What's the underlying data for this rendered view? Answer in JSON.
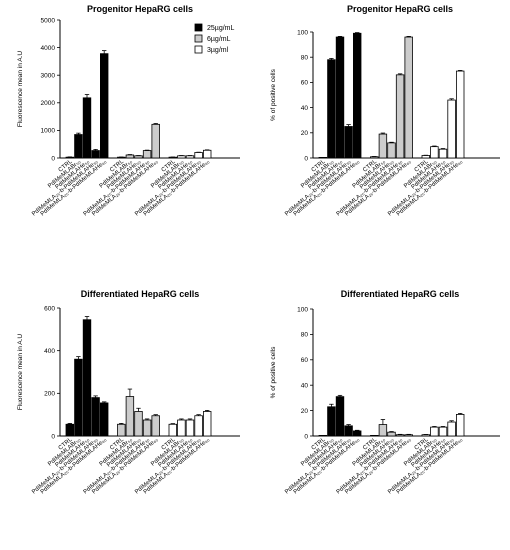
{
  "chart_data": [
    {
      "type": "bar",
      "title": "Progenitor HepaRG cells",
      "ylabel": "Fluorescence mean in A.U",
      "ylim": [
        0,
        5000
      ],
      "yticks": [
        0,
        1000,
        2000,
        3000,
        4000,
        5000
      ],
      "legend": {
        "placement": "top-right",
        "entries": [
          "25µg/mL",
          "6µg/mL",
          "3µg/ml"
        ]
      },
      "categories": [
        "CTRL",
        "PdIMeMLABr₅₀",
        "PdIMeMLAHe₅₀",
        "PdIMeMLA₂₅-b-PdIMeMLAHe₃₀",
        "PdIMeMLA₂₅-b-PdIMeMLAHe₆₀"
      ],
      "series": [
        {
          "name": "25µg/mL",
          "color": "#000000",
          "values": [
            30,
            850,
            2180,
            270,
            3780
          ],
          "errors": [
            10,
            50,
            120,
            40,
            110
          ]
        },
        {
          "name": "6µg/mL",
          "color": "#cccccc",
          "values": [
            30,
            110,
            80,
            270,
            1220
          ],
          "errors": [
            5,
            15,
            10,
            15,
            30
          ]
        },
        {
          "name": "3µg/ml",
          "color": "#ffffff",
          "values": [
            30,
            80,
            80,
            200,
            280
          ],
          "errors": [
            5,
            10,
            10,
            10,
            15
          ]
        }
      ]
    },
    {
      "type": "bar",
      "title": "Progenitor HepaRG cells",
      "ylabel": "% of positive cells",
      "ylim": [
        0,
        100
      ],
      "yticks": [
        0,
        20,
        40,
        60,
        80,
        100
      ],
      "categories": [
        "CTRL",
        "PdIMeMLABr₅₀",
        "PdIMeMLAHe₅₀",
        "PdIMeMLA₂₅-b-PdIMeMLAHe₃₀",
        "PdIMeMLA₂₅-b-PdIMeMLAHe₆₀"
      ],
      "series": [
        {
          "name": "25µg/mL",
          "color": "#000000",
          "values": [
            0,
            78,
            96,
            25,
            99
          ],
          "errors": [
            0,
            1,
            0.5,
            1.5,
            0.5
          ]
        },
        {
          "name": "6µg/mL",
          "color": "#cccccc",
          "values": [
            1,
            19,
            12,
            66,
            96
          ],
          "errors": [
            0.2,
            0.8,
            0.5,
            0.8,
            0.5
          ]
        },
        {
          "name": "3µg/ml",
          "color": "#ffffff",
          "values": [
            2,
            9,
            7,
            46,
            69
          ],
          "errors": [
            0.2,
            0.5,
            0.5,
            1,
            0.5
          ]
        }
      ]
    },
    {
      "type": "bar",
      "title": "Differentiated HepaRG cells",
      "ylabel": "Fluorescence mean in A.U",
      "ylim": [
        0,
        600
      ],
      "yticks": [
        0,
        200,
        400,
        600
      ],
      "categories": [
        "CTRL",
        "PdIMeMLABr₅₀",
        "PdIMeMLAHe₅₀",
        "PdIMeMLA₂₅-b-PdIMeMLAHe₃₀",
        "PdIMeMLA₂₅-b-PdIMeMLAHe₆₀"
      ],
      "series": [
        {
          "name": "25µg/mL",
          "color": "#000000",
          "values": [
            55,
            360,
            545,
            180,
            155
          ],
          "errors": [
            4,
            12,
            15,
            8,
            5
          ]
        },
        {
          "name": "6µg/mL",
          "color": "#cccccc",
          "values": [
            55,
            185,
            115,
            75,
            95
          ],
          "errors": [
            4,
            35,
            15,
            5,
            5
          ]
        },
        {
          "name": "3µg/ml",
          "color": "#ffffff",
          "values": [
            55,
            75,
            75,
            95,
            115
          ],
          "errors": [
            3,
            5,
            5,
            5,
            5
          ]
        }
      ]
    },
    {
      "type": "bar",
      "title": "Differentiated HepaRG cells",
      "ylabel": "% of positive cells",
      "ylim": [
        0,
        100
      ],
      "yticks": [
        0,
        20,
        40,
        60,
        80,
        100
      ],
      "categories": [
        "CTRL",
        "PdIMeMLABr₅₀",
        "PdIMeMLAHe₅₀",
        "PdIMeMLA₂₅-b-PdIMeMLAHe₃₀",
        "PdIMeMLA₂₅-b-PdIMeMLAHe₆₀"
      ],
      "series": [
        {
          "name": "25µg/mL",
          "color": "#000000",
          "values": [
            0,
            23,
            31,
            8,
            4
          ],
          "errors": [
            0,
            2,
            1,
            1,
            0.5
          ]
        },
        {
          "name": "6µg/mL",
          "color": "#cccccc",
          "values": [
            0,
            9,
            3,
            1,
            1
          ],
          "errors": [
            0,
            4,
            0.5,
            0.3,
            0.3
          ]
        },
        {
          "name": "3µg/ml",
          "color": "#ffffff",
          "values": [
            1,
            7,
            7,
            11,
            17
          ],
          "errors": [
            0.2,
            0.5,
            0.5,
            1,
            0.8
          ]
        }
      ]
    }
  ]
}
